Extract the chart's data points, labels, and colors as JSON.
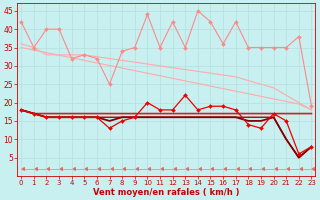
{
  "x": [
    0,
    1,
    2,
    3,
    4,
    5,
    6,
    7,
    8,
    9,
    10,
    11,
    12,
    13,
    14,
    15,
    16,
    17,
    18,
    19,
    20,
    21,
    22,
    23
  ],
  "background_color": "#c8f0f0",
  "grid_color": "#b8dede",
  "xlabel": "Vent moyen/en rafales ( km/h )",
  "xlabel_color": "#cc0000",
  "tick_color": "#cc0000",
  "series": [
    {
      "data": [
        42,
        35,
        40,
        40,
        32,
        33,
        32,
        25,
        34,
        35,
        44,
        35,
        42,
        35,
        45,
        42,
        36,
        42,
        35,
        35,
        35,
        35,
        38,
        19
      ],
      "color": "#ff8888",
      "marker": "D",
      "markersize": 2.0,
      "linewidth": 0.8,
      "zorder": 3
    },
    {
      "data": [
        35,
        34.3,
        33.6,
        32.9,
        32.2,
        31.5,
        30.8,
        30.1,
        29.4,
        28.7,
        28.0,
        27.3,
        26.6,
        25.9,
        25.2,
        24.5,
        23.8,
        23.1,
        22.4,
        21.7,
        21.0,
        20.3,
        19.6,
        18.0
      ],
      "color": "#ffaaaa",
      "marker": null,
      "markersize": 0,
      "linewidth": 0.8,
      "zorder": 2
    },
    {
      "data": [
        36,
        35,
        33,
        33,
        33,
        33,
        32.5,
        32,
        31.5,
        31,
        30.5,
        30,
        29.5,
        29,
        28.5,
        28,
        27.5,
        27,
        26,
        25,
        24,
        22,
        20,
        18
      ],
      "color": "#ffaaaa",
      "marker": null,
      "markersize": 0,
      "linewidth": 0.8,
      "zorder": 2
    },
    {
      "data": [
        18,
        17,
        16,
        16,
        16,
        16,
        16,
        13,
        15,
        16,
        20,
        18,
        18,
        22,
        18,
        19,
        19,
        18,
        14,
        13,
        17,
        15,
        6,
        8
      ],
      "color": "#ee0000",
      "marker": "D",
      "markersize": 2.0,
      "linewidth": 0.9,
      "zorder": 5
    },
    {
      "data": [
        18,
        17,
        17,
        17,
        17,
        17,
        17,
        17,
        17,
        17,
        17,
        17,
        17,
        17,
        17,
        17,
        17,
        17,
        17,
        17,
        17,
        17,
        17,
        17
      ],
      "color": "#cc2222",
      "marker": null,
      "markersize": 0,
      "linewidth": 1.2,
      "zorder": 4
    },
    {
      "data": [
        18,
        17,
        16,
        16,
        16,
        16,
        16,
        16,
        16,
        16,
        16,
        16,
        16,
        16,
        16,
        16,
        16,
        16,
        16,
        16,
        16,
        10,
        5,
        8
      ],
      "color": "#aa0000",
      "marker": null,
      "markersize": 0,
      "linewidth": 1.0,
      "zorder": 4
    },
    {
      "data": [
        18,
        17,
        16,
        16,
        16,
        16,
        16,
        15,
        16,
        16,
        16,
        16,
        16,
        16,
        16,
        16,
        16,
        16,
        15,
        15,
        16,
        10,
        5,
        8
      ],
      "color": "#880000",
      "marker": null,
      "markersize": 0,
      "linewidth": 1.3,
      "zorder": 4
    },
    {
      "data": [
        2,
        2,
        2,
        2,
        2,
        2,
        2,
        2,
        2,
        2,
        2,
        2,
        2,
        2,
        2,
        2,
        2,
        2,
        2,
        2,
        2,
        2,
        2,
        2
      ],
      "color": "#ee6666",
      "marker": 4,
      "markersize": 3.5,
      "linewidth": 0.4,
      "zorder": 1
    }
  ],
  "ylim": [
    0,
    47
  ],
  "yticks": [
    5,
    10,
    15,
    20,
    25,
    30,
    35,
    40,
    45
  ],
  "xlim": [
    -0.3,
    23.3
  ],
  "figsize": [
    3.2,
    2.0
  ],
  "dpi": 100
}
